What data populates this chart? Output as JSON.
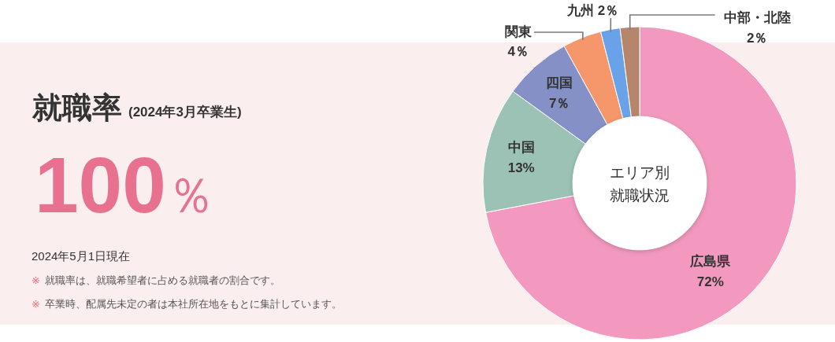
{
  "chart_data": [
    {
      "type": "other",
      "title": "就職率",
      "subtitle": "(2024年3月卒業生)",
      "annotations": [
        "100％",
        "2024年5月1日現在",
        "※ 就職率は、就職希望者に占める就職者の割合です。",
        "※ 卒業時、配属先未定の者は本社所在地をもとに集計しています。"
      ]
    },
    {
      "type": "donut",
      "title": "エリア別就職状況",
      "categories": [
        "広島県",
        "中国",
        "四国",
        "関東",
        "九州",
        "中部・北陸"
      ],
      "values": [
        72,
        13,
        7,
        4,
        2,
        2
      ],
      "colors": [
        "#f399c0",
        "#9cc2b5",
        "#8590c7",
        "#f5976b",
        "#69a2e9",
        "#b5866c"
      ],
      "value_labels": [
        "72%",
        "13%",
        "7％",
        "4％",
        "2％",
        "2％"
      ]
    }
  ]
}
